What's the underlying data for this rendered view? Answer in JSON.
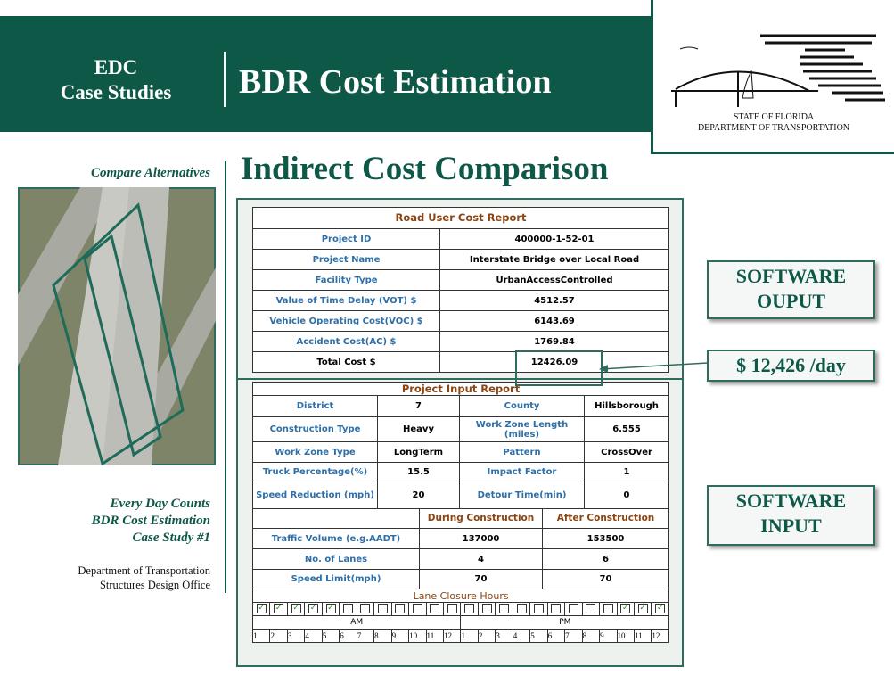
{
  "header": {
    "line1": "EDC",
    "line2": "Case Studies",
    "title": "BDR Cost Estimation"
  },
  "logo": {
    "line1": "STATE OF FLORIDA",
    "line2": "DEPARTMENT OF TRANSPORTATION"
  },
  "sidebar": {
    "caption": "Compare Alternatives",
    "footer_lines": [
      "Every Day Counts",
      "BDR Cost Estimation",
      "Case Study #1"
    ],
    "office_lines": [
      "Department of Transportation",
      "Structures Design Office"
    ]
  },
  "heading": "Indirect Cost Comparison",
  "road_user_report": {
    "title": "Road User Cost Report",
    "rows": [
      [
        "Project ID",
        "400000-1-52-01"
      ],
      [
        "Project Name",
        "Interstate Bridge over Local Road"
      ],
      [
        "Facility Type",
        "UrbanAccessControlled"
      ],
      [
        "Value of Time Delay (VOT) $",
        "4512.57"
      ],
      [
        "Vehicle Operating Cost(VOC) $",
        "6143.69"
      ],
      [
        "Accident Cost(AC) $",
        "1769.84"
      ],
      [
        "Total Cost $",
        "12426.09"
      ]
    ]
  },
  "project_input_report": {
    "title": "Project Input Report",
    "rows": [
      [
        "District",
        "7",
        "County",
        "Hillsborough"
      ],
      [
        "Construction Type",
        "Heavy",
        "Work Zone Length (miles)",
        "6.555"
      ],
      [
        "Work Zone Type",
        "LongTerm",
        "Pattern",
        "CrossOver"
      ],
      [
        "Truck Percentage(%)",
        "15.5",
        "Impact Factor",
        "1"
      ],
      [
        "Speed Reduction (mph)",
        "20",
        "Detour Time(min)",
        "0"
      ]
    ]
  },
  "construction": {
    "headers": [
      "During Construction",
      "After Construction"
    ],
    "rows": [
      [
        "Traffic Volume (e.g.AADT)",
        "137000",
        "153500"
      ],
      [
        "No. of Lanes",
        "4",
        "6"
      ],
      [
        "Speed Limit(mph)",
        "70",
        "70"
      ]
    ]
  },
  "lane_closure": {
    "title": "Lane Closure Hours",
    "am": "AM",
    "pm": "PM",
    "am_hours": [
      "1",
      "2",
      "3",
      "4",
      "5",
      "6",
      "7",
      "8",
      "9",
      "10",
      "11",
      "12"
    ],
    "pm_hours": [
      "1",
      "2",
      "3",
      "4",
      "5",
      "6",
      "7",
      "8",
      "9",
      "10",
      "11",
      "12"
    ],
    "checked": [
      true,
      true,
      true,
      true,
      true,
      false,
      false,
      false,
      false,
      false,
      false,
      false,
      false,
      false,
      false,
      false,
      false,
      false,
      false,
      false,
      false,
      true,
      true,
      true
    ]
  },
  "callouts": {
    "output": [
      "SOFTWARE",
      "OUPUT"
    ],
    "total": "$ 12,426 /day",
    "input": [
      "SOFTWARE",
      "INPUT"
    ]
  }
}
